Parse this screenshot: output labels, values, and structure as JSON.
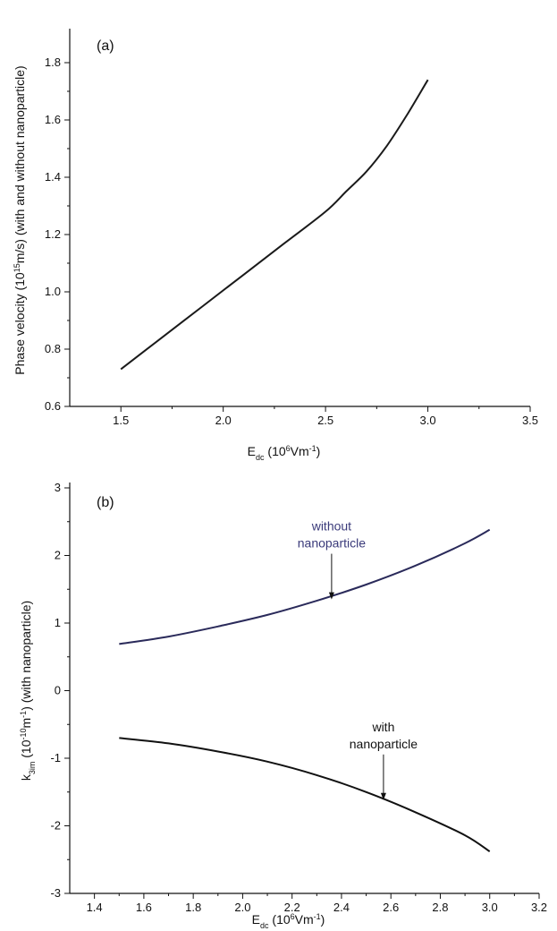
{
  "chart_data": [
    {
      "panel": "(a)",
      "type": "line",
      "xlabel": {
        "main": "E",
        "sub": "dc",
        "pre": " (10",
        "sup": "6",
        "post": "Vm",
        "sup2": "-1",
        "end": ")"
      },
      "ylabel": {
        "pre": "Phase velocity (10",
        "sup": "15",
        "post": "m/s) (with and without nanoparticle)"
      },
      "xlim": [
        1.25,
        3.5
      ],
      "ylim": [
        0.6,
        1.9
      ],
      "xticks": [
        1.5,
        2.0,
        2.5,
        3.0,
        3.5
      ],
      "xtick_labels": [
        "1.5",
        "2.0",
        "2.5",
        "3.0",
        "3.5"
      ],
      "yticks": [
        0.6,
        0.8,
        1.0,
        1.2,
        1.4,
        1.6,
        1.8
      ],
      "ytick_labels": [
        "0.6",
        "0.8",
        "1.0",
        "1.2",
        "1.4",
        "1.6",
        "1.8"
      ],
      "grid": false,
      "series": [
        {
          "color": "#1a1a1a",
          "x": [
            1.5,
            1.7,
            1.9,
            2.1,
            2.3,
            2.5,
            2.6,
            2.7,
            2.8,
            2.9,
            3.0
          ],
          "y": [
            0.73,
            0.84,
            0.95,
            1.06,
            1.17,
            1.28,
            1.35,
            1.42,
            1.51,
            1.62,
            1.74
          ]
        }
      ]
    },
    {
      "panel": "(b)",
      "type": "line",
      "xlabel": {
        "main": "E",
        "sub": "dc",
        "pre": " (10",
        "sup": "6",
        "post": "Vm",
        "sup2": "-1",
        "end": ")"
      },
      "ylabel": {
        "main": "k",
        "sub": "3im",
        "pre": " (10",
        "sup": "-10",
        "post": "m",
        "sup2": "-1",
        "end": ") (with nanoparticle)"
      },
      "xlim": [
        1.3,
        3.2
      ],
      "ylim": [
        -3,
        3
      ],
      "xticks": [
        1.4,
        1.6,
        1.8,
        2.0,
        2.2,
        2.4,
        2.6,
        2.8,
        3.0,
        3.2
      ],
      "xtick_labels": [
        "1.4",
        "1.6",
        "1.8",
        "2.0",
        "2.2",
        "2.4",
        "2.6",
        "2.8",
        "3.0",
        "3.2"
      ],
      "yticks": [
        -3,
        -2,
        -1,
        0,
        1,
        2,
        3
      ],
      "ytick_labels": [
        "-3",
        "-2",
        "-1",
        "0",
        "1",
        "2",
        "3"
      ],
      "grid": false,
      "series": [
        {
          "color": "#2a2a5a",
          "x": [
            1.5,
            1.7,
            1.9,
            2.1,
            2.3,
            2.5,
            2.7,
            2.9,
            3.0
          ],
          "y": [
            0.69,
            0.8,
            0.95,
            1.12,
            1.33,
            1.57,
            1.85,
            2.18,
            2.38
          ]
        },
        {
          "color": "#111111",
          "x": [
            1.5,
            1.7,
            1.9,
            2.1,
            2.3,
            2.5,
            2.7,
            2.9,
            3.0
          ],
          "y": [
            -0.7,
            -0.78,
            -0.9,
            -1.05,
            -1.25,
            -1.5,
            -1.8,
            -2.14,
            -2.38
          ]
        }
      ],
      "annotations": [
        {
          "lines": [
            "without",
            "nanoparticle"
          ],
          "color": "#3a3a7a",
          "arrow_x": 2.36,
          "arrow_y": 1.35
        },
        {
          "lines": [
            "with",
            "nanoparticle"
          ],
          "color": "#111111",
          "arrow_x": 2.57,
          "arrow_y": -1.62
        }
      ]
    }
  ]
}
